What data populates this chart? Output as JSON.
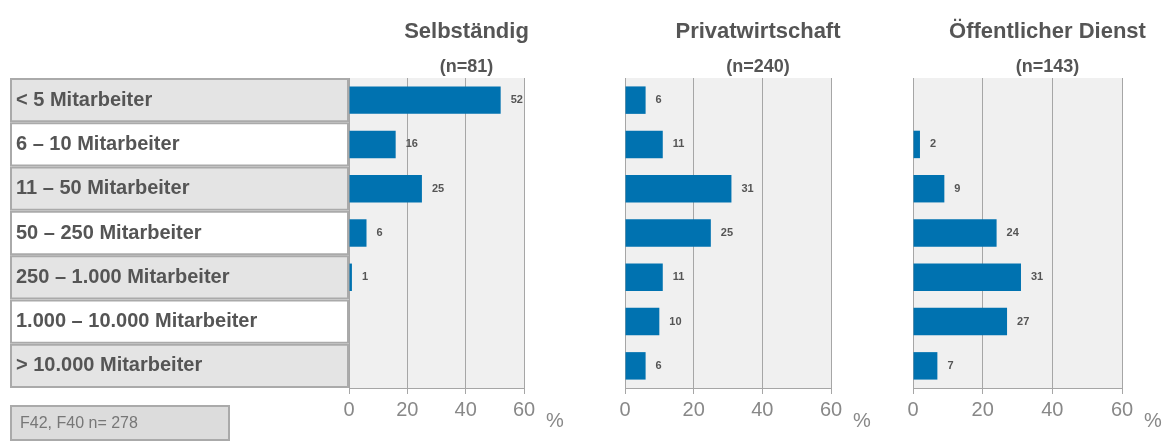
{
  "chart_data": [
    {
      "type": "bar",
      "orientation": "horizontal",
      "title": "Selbständig",
      "subtitle": "(n=81)",
      "xlabel": "%",
      "categories": [
        "< 5 Mitarbeiter",
        "6 – 10 Mitarbeiter",
        "11 – 50 Mitarbeiter",
        "50 – 250 Mitarbeiter",
        "250 – 1.000 Mitarbeiter",
        "1.000 – 10.000 Mitarbeiter",
        "> 10.000 Mitarbeiter"
      ],
      "series": [
        {
          "color": "#0072b0",
          "values": [
            52,
            16,
            25,
            6,
            1,
            null,
            null
          ]
        }
      ],
      "xlim": [
        0,
        60
      ],
      "xticks": [
        0,
        20,
        40,
        60
      ],
      "grid": "x",
      "data_labels": true,
      "annotations": [
        "F42, F40 n= 278"
      ]
    },
    {
      "type": "bar",
      "orientation": "horizontal",
      "title": "Privatwirtschaft",
      "subtitle": "(n=240)",
      "xlabel": "%",
      "categories": [
        null,
        null,
        null,
        null,
        null,
        null,
        null
      ],
      "series": [
        {
          "color": "#0072b0",
          "values": [
            6,
            11,
            31,
            25,
            11,
            10,
            6
          ]
        }
      ],
      "xlim": [
        0,
        60
      ],
      "xticks": [
        0,
        20,
        40,
        60
      ],
      "grid": "x",
      "data_labels": true
    },
    {
      "type": "bar",
      "orientation": "horizontal",
      "title": "Öffentlicher Dienst",
      "subtitle": "(n=143)",
      "xlabel": "%",
      "categories": [
        null,
        null,
        null,
        null,
        null,
        null,
        null
      ],
      "series": [
        {
          "color": "#0072b0",
          "values": [
            null,
            2,
            9,
            24,
            31,
            27,
            7
          ]
        }
      ],
      "xlim": [
        0,
        60
      ],
      "xticks": [
        0,
        20,
        40,
        60
      ],
      "grid": "x",
      "data_labels": true
    }
  ]
}
